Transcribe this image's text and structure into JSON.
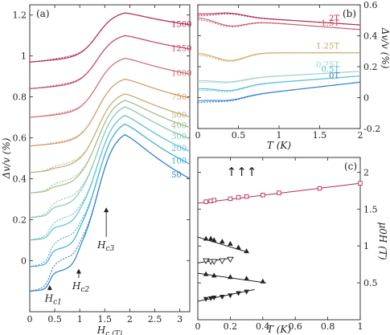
{
  "chart_data": [
    {
      "panel": "(a)",
      "type": "line",
      "xlabel": "H_c (T)",
      "ylabel": "Δv/v (%)",
      "xlim": [
        0,
        3.2
      ],
      "ylim": [
        -0.25,
        1.25
      ],
      "xticks": [
        0,
        0.5,
        1,
        1.5,
        2,
        2.5,
        3
      ],
      "xtick_labels": [
        "0",
        "0.5",
        "1",
        "1.5",
        "2",
        "2.5",
        "3"
      ],
      "yticks": [
        0,
        0.2,
        0.4,
        0.6,
        0.8,
        1.0,
        1.2
      ],
      "ytick_labels": [
        "0",
        "0.2",
        "0.4",
        "0.6",
        "0.8",
        "1",
        "1.2"
      ],
      "annotations": [
        {
          "text": "H_c1",
          "label_x": 0.3,
          "label_y": -0.2,
          "arrow_to": [
            0.4,
            -0.12
          ]
        },
        {
          "text": "H_c2",
          "label_x": 0.85,
          "label_y": -0.14,
          "arrow_to": [
            0.98,
            -0.04
          ]
        },
        {
          "text": "H_c3",
          "label_x": 1.35,
          "label_y": 0.06,
          "arrow_to": [
            1.53,
            0.26
          ]
        }
      ],
      "series": [
        {
          "name": "1500",
          "color": "#b5285a",
          "offset": 0.97,
          "amp": 0.21,
          "kinks": [
            0.0,
            0.0
          ]
        },
        {
          "name": "1250",
          "color": "#c04a64",
          "offset": 0.84,
          "amp": 0.23,
          "kinks": [
            0.0,
            0.0
          ]
        },
        {
          "name": "1000",
          "color": "#d0706e",
          "offset": 0.7,
          "amp": 0.26,
          "kinks": [
            0.0,
            0.0
          ]
        },
        {
          "name": "750",
          "color": "#d49a6a",
          "offset": 0.56,
          "amp": 0.3,
          "kinks": [
            0.0,
            0.0
          ]
        },
        {
          "name": "500",
          "color": "#bfae74",
          "offset": 0.43,
          "amp": 0.35,
          "kinks": [
            0.01,
            0.0
          ]
        },
        {
          "name": "400",
          "color": "#9fbf8a",
          "offset": 0.33,
          "amp": 0.4,
          "kinks": [
            0.02,
            0.01
          ]
        },
        {
          "name": "300",
          "color": "#85c9b6",
          "offset": 0.21,
          "amp": 0.46,
          "kinks": [
            0.04,
            0.02
          ]
        },
        {
          "name": "200",
          "color": "#5cc0cf",
          "offset": 0.1,
          "amp": 0.51,
          "kinks": [
            0.05,
            0.03
          ]
        },
        {
          "name": "100",
          "color": "#3aaed6",
          "offset": -0.03,
          "amp": 0.56,
          "kinks": [
            0.07,
            0.05
          ]
        },
        {
          "name": "50",
          "color": "#2a7fd0",
          "offset": -0.15,
          "amp": 0.61,
          "kinks": [
            0.08,
            0.06
          ]
        }
      ]
    },
    {
      "panel": "(b)",
      "type": "line",
      "xlabel": "T (K)",
      "ylabel": "Δv/v (%)",
      "xlim": [
        0,
        2
      ],
      "ylim": [
        -0.2,
        0.6
      ],
      "xticks": [
        0,
        0.5,
        1,
        1.5,
        2
      ],
      "xtick_labels": [
        "0",
        "0.5",
        "1",
        "1.5",
        "2"
      ],
      "yticks": [
        -0.2,
        0,
        0.2,
        0.4,
        0.6
      ],
      "ytick_labels": [
        "-0.2",
        "0",
        "0.2",
        "0.4",
        "0.6"
      ],
      "y_axis_side": "right",
      "series": [
        {
          "name": "2T",
          "color": "#b5285a",
          "base": 0.54,
          "slope": -0.035,
          "bump": 0.02
        },
        {
          "name": "1.5T",
          "color": "#c8606a",
          "base": 0.52,
          "slope": -0.04,
          "bump": -0.04
        },
        {
          "name": "1.25T",
          "color": "#cfa866",
          "base": 0.29,
          "slope": 0.0,
          "bump": -0.05
        },
        {
          "name": "0.75T",
          "color": "#9fd2cc",
          "base": 0.11,
          "slope": 0.03,
          "bump": -0.02
        },
        {
          "name": "0.5T",
          "color": "#4ec0d2",
          "base": 0.06,
          "slope": 0.04,
          "bump": -0.03
        },
        {
          "name": "0T",
          "color": "#2a7fd0",
          "base": -0.02,
          "slope": 0.06,
          "bump": -0.02
        }
      ]
    },
    {
      "panel": "(c)",
      "type": "scatter",
      "xlabel": "T (K)",
      "ylabel": "μ0H (T)",
      "xlim": [
        0,
        1
      ],
      "ylim": [
        0,
        2.2
      ],
      "xticks": [
        0,
        0.2,
        0.4,
        0.6,
        0.8,
        1
      ],
      "xtick_labels": [
        "0",
        "0.2",
        "0.4",
        "0.6",
        "0.8",
        "1"
      ],
      "yticks": [
        0.5,
        1,
        1.5,
        2
      ],
      "ytick_labels": [
        "0.5",
        "1",
        "1.5",
        "2"
      ],
      "y_axis_side": "right",
      "arrows_text": "↑↑↑",
      "series": [
        {
          "name": "",
          "marker": "square",
          "color": "#b5285a",
          "x": [
            0.05,
            0.08,
            0.1,
            0.2,
            0.25,
            0.3,
            0.4,
            0.5,
            0.75,
            1.0
          ],
          "y": [
            1.6,
            1.61,
            1.62,
            1.64,
            1.66,
            1.67,
            1.69,
            1.72,
            1.78,
            1.85
          ],
          "fit": [
            [
              0,
              1.58
            ],
            [
              1.0,
              1.85
            ]
          ]
        },
        {
          "name": "",
          "marker": "triangle-up",
          "color": "#222222",
          "x": [
            0.05,
            0.08,
            0.1,
            0.15,
            0.2,
            0.25,
            0.3
          ],
          "y": [
            1.1,
            1.1,
            1.08,
            1.06,
            1.03,
            0.98,
            0.93
          ],
          "fit": [
            [
              0,
              1.12
            ],
            [
              0.3,
              0.92
            ]
          ]
        },
        {
          "name": "",
          "marker": "triangle-down-open",
          "color": "#222222",
          "x": [
            0.05,
            0.08,
            0.1,
            0.15,
            0.2
          ],
          "y": [
            0.8,
            0.79,
            0.79,
            0.8,
            0.82
          ],
          "fit": [
            [
              0,
              0.77
            ],
            [
              0.22,
              0.84
            ]
          ]
        },
        {
          "name": "",
          "marker": "triangle-up",
          "color": "#222222",
          "x": [
            0.05,
            0.1,
            0.2,
            0.3,
            0.4
          ],
          "y": [
            0.62,
            0.6,
            0.58,
            0.56,
            0.52
          ],
          "fit": [
            [
              0,
              0.63
            ],
            [
              0.42,
              0.5
            ]
          ]
        },
        {
          "name": "",
          "marker": "triangle-down",
          "color": "#222222",
          "x": [
            0.05,
            0.08,
            0.1,
            0.15,
            0.2,
            0.25,
            0.3
          ],
          "y": [
            0.28,
            0.29,
            0.3,
            0.31,
            0.33,
            0.36,
            0.38
          ],
          "fit": [
            [
              0,
              0.25
            ],
            [
              0.35,
              0.41
            ]
          ]
        }
      ]
    }
  ]
}
